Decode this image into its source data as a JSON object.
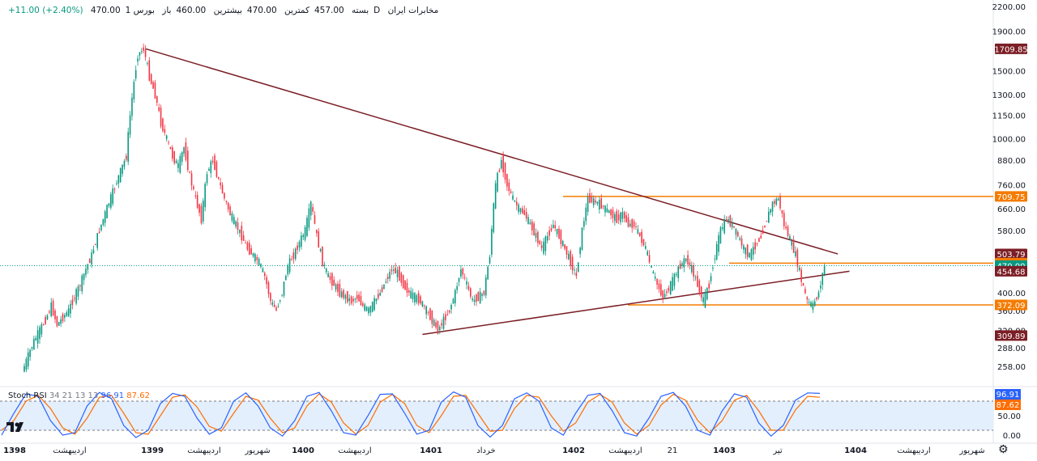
{
  "header": {
    "symbol": "مخابرات ایران",
    "interval": "1D",
    "exchange": "بورس",
    "open_label": "باز",
    "open": "460.00",
    "high_label": "بیشترین",
    "high": "470.00",
    "low_label": "کمترین",
    "low": "457.00",
    "close_label": "بسته",
    "close": "470.00",
    "change": "+11.00 (+2.40%)"
  },
  "indicator": {
    "name": "Stoch RSI",
    "params": "34 21 13 13",
    "k_value": "96.91",
    "d_value": "87.62"
  },
  "chart_data": {
    "type": "candlestick",
    "y_scale": "log",
    "ylim": [
      240,
      2200
    ],
    "price_ticks": [
      "2200.00",
      "1900.00",
      "1500.00",
      "1300.00",
      "1150.00",
      "1000.00",
      "880.00",
      "760.00",
      "660.00",
      "580.00",
      "400.00",
      "360.00",
      "320.00",
      "288.00",
      "258.00"
    ],
    "x_ticks": [
      {
        "label": "1398",
        "bold": true
      },
      {
        "label": "اردیبهشت",
        "bold": false
      },
      {
        "label": "1399",
        "bold": true
      },
      {
        "label": "اردیبهشت",
        "bold": false
      },
      {
        "label": "شهریور",
        "bold": false
      },
      {
        "label": "1400",
        "bold": true
      },
      {
        "label": "اردیبهشت",
        "bold": false
      },
      {
        "label": "1401",
        "bold": true
      },
      {
        "label": "خرداد",
        "bold": false
      },
      {
        "label": "1402",
        "bold": true
      },
      {
        "label": "اردیبهشت",
        "bold": false
      },
      {
        "label": "21",
        "bold": false
      },
      {
        "label": "1403",
        "bold": true
      },
      {
        "label": "تیر",
        "bold": false
      },
      {
        "label": "1404",
        "bold": true
      },
      {
        "label": "اردیبهشت",
        "bold": false
      },
      {
        "label": "شهریور",
        "bold": false
      }
    ],
    "price_path": [
      [
        0,
        250
      ],
      [
        2,
        300
      ],
      [
        4,
        340
      ],
      [
        5,
        370
      ],
      [
        6,
        330
      ],
      [
        8,
        360
      ],
      [
        10,
        420
      ],
      [
        12,
        500
      ],
      [
        14,
        620
      ],
      [
        16,
        750
      ],
      [
        18,
        900
      ],
      [
        20,
        1650
      ],
      [
        21,
        1709.85
      ],
      [
        22,
        1450
      ],
      [
        23,
        1300
      ],
      [
        24,
        1100
      ],
      [
        25,
        1000
      ],
      [
        26,
        900
      ],
      [
        27,
        850
      ],
      [
        28,
        950
      ],
      [
        29,
        800
      ],
      [
        30,
        700
      ],
      [
        31,
        620
      ],
      [
        32,
        820
      ],
      [
        33,
        880
      ],
      [
        34,
        780
      ],
      [
        35,
        700
      ],
      [
        36,
        640
      ],
      [
        37,
        600
      ],
      [
        38,
        560
      ],
      [
        39,
        520
      ],
      [
        40,
        500
      ],
      [
        41,
        480
      ],
      [
        42,
        440
      ],
      [
        43,
        380
      ],
      [
        44,
        360
      ],
      [
        45,
        400
      ],
      [
        46,
        470
      ],
      [
        47,
        500
      ],
      [
        48,
        540
      ],
      [
        49,
        580
      ],
      [
        50,
        680
      ],
      [
        51,
        560
      ],
      [
        52,
        480
      ],
      [
        53,
        440
      ],
      [
        54,
        420
      ],
      [
        55,
        400
      ],
      [
        56,
        390
      ],
      [
        57,
        380
      ],
      [
        58,
        390
      ],
      [
        59,
        370
      ],
      [
        60,
        360
      ],
      [
        61,
        380
      ],
      [
        62,
        400
      ],
      [
        63,
        430
      ],
      [
        64,
        460
      ],
      [
        65,
        450
      ],
      [
        66,
        420
      ],
      [
        67,
        400
      ],
      [
        68,
        390
      ],
      [
        69,
        380
      ],
      [
        70,
        360
      ],
      [
        71,
        340
      ],
      [
        72,
        320
      ],
      [
        73,
        340
      ],
      [
        74,
        360
      ],
      [
        75,
        400
      ],
      [
        76,
        460
      ],
      [
        77,
        420
      ],
      [
        78,
        380
      ],
      [
        79,
        390
      ],
      [
        80,
        400
      ],
      [
        81,
        500
      ],
      [
        82,
        760
      ],
      [
        83,
        880
      ],
      [
        84,
        760
      ],
      [
        85,
        700
      ],
      [
        86,
        660
      ],
      [
        87,
        640
      ],
      [
        88,
        600
      ],
      [
        89,
        560
      ],
      [
        90,
        520
      ],
      [
        91,
        560
      ],
      [
        92,
        600
      ],
      [
        93,
        560
      ],
      [
        94,
        520
      ],
      [
        95,
        480
      ],
      [
        96,
        440
      ],
      [
        97,
        580
      ],
      [
        98,
        700
      ],
      [
        99,
        690
      ],
      [
        100,
        680
      ],
      [
        101,
        660
      ],
      [
        102,
        640
      ],
      [
        103,
        620
      ],
      [
        104,
        640
      ],
      [
        105,
        600
      ],
      [
        106,
        600
      ],
      [
        107,
        560
      ],
      [
        108,
        520
      ],
      [
        109,
        460
      ],
      [
        110,
        420
      ],
      [
        111,
        390
      ],
      [
        112,
        410
      ],
      [
        113,
        440
      ],
      [
        114,
        470
      ],
      [
        115,
        490
      ],
      [
        116,
        460
      ],
      [
        117,
        420
      ],
      [
        118,
        380
      ],
      [
        119,
        420
      ],
      [
        120,
        500
      ],
      [
        121,
        580
      ],
      [
        122,
        620
      ],
      [
        123,
        600
      ],
      [
        124,
        560
      ],
      [
        125,
        520
      ],
      [
        126,
        500
      ],
      [
        127,
        530
      ],
      [
        128,
        560
      ],
      [
        129,
        620
      ],
      [
        130,
        680
      ],
      [
        131,
        700
      ],
      [
        132,
        600
      ],
      [
        133,
        550
      ],
      [
        134,
        500
      ],
      [
        135,
        430
      ],
      [
        136,
        380
      ],
      [
        137,
        370
      ],
      [
        138,
        400
      ],
      [
        139,
        470
      ]
    ],
    "horizontal_lines": [
      {
        "label": "709.75",
        "value": 709.75,
        "color": "#f57c00"
      },
      {
        "label": "477.01",
        "value": 477.01,
        "color": "#f57c00"
      },
      {
        "label": "372.09",
        "value": 372.09,
        "color": "#f57c00"
      }
    ],
    "trendlines": [
      {
        "name": "resistance",
        "points": [
          [
            21,
            1709.85
          ],
          [
            141,
            503.79
          ]
        ],
        "color": "#7b1e25"
      },
      {
        "name": "support",
        "points": [
          [
            69,
            312
          ],
          [
            143,
            454.68
          ]
        ],
        "color": "#7b1e25"
      }
    ],
    "price_labels": [
      {
        "value": "1709.85",
        "style": "dark-red"
      },
      {
        "value": "709.75",
        "style": "orange"
      },
      {
        "value": "503.79",
        "style": "dark-red"
      },
      {
        "value": "477.01",
        "style": "orange"
      },
      {
        "value": "470.00",
        "style": "last-price"
      },
      {
        "value": "454.68",
        "style": "dark-red"
      },
      {
        "value": "372.09",
        "style": "orange"
      },
      {
        "value": "309.89",
        "style": "dark-red"
      }
    ],
    "last_price": 470.0,
    "rsi": {
      "ticks": [
        "50.00",
        "0.00"
      ],
      "upper_band": 80,
      "lower_band": 20,
      "k_series": [
        10,
        55,
        95,
        90,
        40,
        10,
        15,
        70,
        98,
        85,
        30,
        5,
        20,
        75,
        96,
        90,
        45,
        12,
        25,
        80,
        97,
        70,
        25,
        8,
        40,
        90,
        98,
        60,
        15,
        10,
        50,
        94,
        95,
        55,
        12,
        20,
        78,
        99,
        88,
        30,
        6,
        30,
        85,
        97,
        80,
        25,
        10,
        55,
        92,
        96,
        60,
        15,
        8,
        45,
        90,
        98,
        70,
        20,
        10,
        60,
        95,
        88,
        35,
        8,
        30,
        82,
        97,
        96
      ],
      "d_series": [
        20,
        40,
        80,
        92,
        65,
        25,
        12,
        45,
        88,
        92,
        55,
        15,
        12,
        50,
        88,
        93,
        68,
        28,
        18,
        55,
        90,
        82,
        45,
        15,
        25,
        70,
        95,
        78,
        35,
        12,
        30,
        78,
        94,
        75,
        30,
        15,
        50,
        90,
        92,
        55,
        18,
        20,
        65,
        92,
        88,
        50,
        18,
        35,
        78,
        94,
        78,
        35,
        12,
        30,
        72,
        94,
        82,
        40,
        15,
        40,
        82,
        92,
        60,
        20,
        20,
        62,
        90,
        88
      ]
    }
  }
}
